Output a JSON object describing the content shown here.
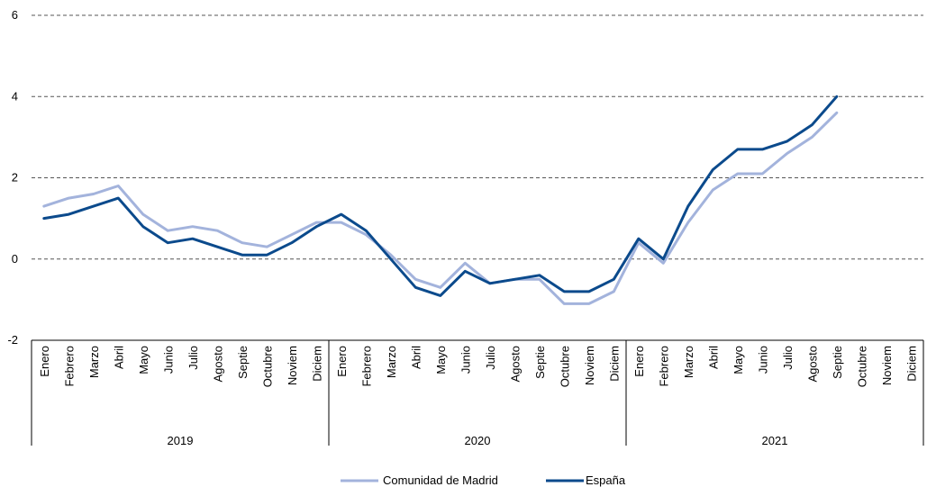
{
  "chart_data": {
    "type": "line",
    "title": "",
    "xlabel": "",
    "ylabel": "",
    "ylim": [
      -2,
      6
    ],
    "yticks": [
      -2,
      0,
      2,
      4,
      6
    ],
    "grid": "horizontal-dashed",
    "legend_position": "bottom",
    "month_labels": [
      "Enero",
      "Febrero",
      "Marzo",
      "Abril",
      "Mayo",
      "Junio",
      "Julio",
      "Agosto",
      "Septie",
      "Octubre",
      "Noviem",
      "Diciem"
    ],
    "years": [
      "2019",
      "2020",
      "2021"
    ],
    "series": [
      {
        "name": "Comunidad de Madrid",
        "color": "#a3b3dc",
        "values": [
          1.3,
          1.5,
          1.6,
          1.8,
          1.1,
          0.7,
          0.8,
          0.7,
          0.4,
          0.3,
          0.6,
          0.9,
          0.9,
          0.6,
          0.1,
          -0.5,
          -0.7,
          -0.1,
          -0.6,
          -0.5,
          -0.5,
          -1.1,
          -1.1,
          -0.8,
          0.4,
          -0.1,
          0.9,
          1.7,
          2.1,
          2.1,
          2.6,
          3.0,
          3.6
        ]
      },
      {
        "name": "España",
        "color": "#0b4a8c",
        "values": [
          1.0,
          1.1,
          1.3,
          1.5,
          0.8,
          0.4,
          0.5,
          0.3,
          0.1,
          0.1,
          0.4,
          0.8,
          1.1,
          0.7,
          0.0,
          -0.7,
          -0.9,
          -0.3,
          -0.6,
          -0.5,
          -0.4,
          -0.8,
          -0.8,
          -0.5,
          0.5,
          0.0,
          1.3,
          2.2,
          2.7,
          2.7,
          2.9,
          3.3,
          4.0
        ]
      }
    ]
  }
}
